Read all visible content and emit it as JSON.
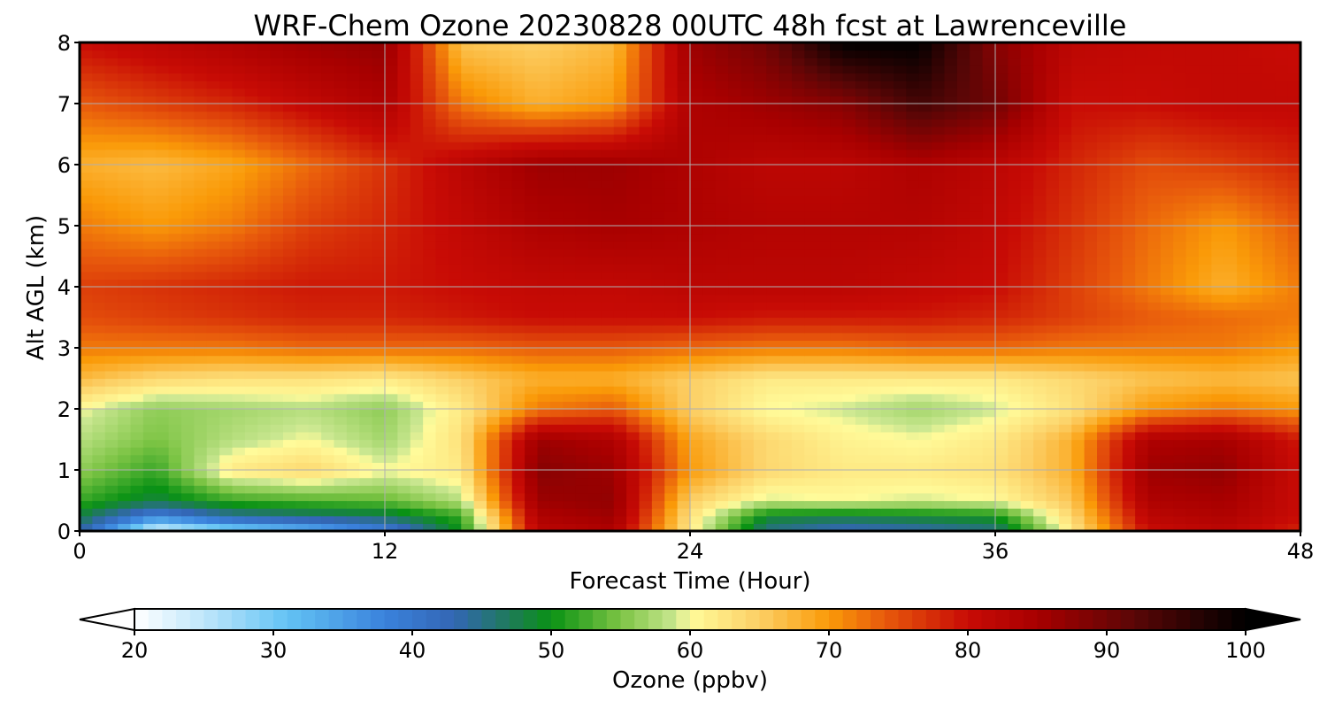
{
  "chart_data": {
    "type": "heatmap",
    "title": "WRF-Chem Ozone  20230828 00UTC 48h fcst at Lawrenceville",
    "xlabel": "Forecast Time (Hour)",
    "ylabel": "Alt AGL (km)",
    "xlim": [
      0,
      48
    ],
    "ylim": [
      0,
      8
    ],
    "x_ticks": [
      0,
      12,
      24,
      36,
      48
    ],
    "y_ticks": [
      0,
      1,
      2,
      3,
      4,
      5,
      6,
      7,
      8
    ],
    "grid": true,
    "x": [
      0,
      3,
      6,
      9,
      12,
      15,
      18,
      21,
      24,
      27,
      30,
      33,
      36,
      39,
      42,
      45,
      48
    ],
    "y": [
      0,
      0.25,
      0.5,
      1,
      1.5,
      2,
      2.5,
      3,
      3.5,
      4,
      5,
      6,
      7,
      8
    ],
    "values": [
      [
        44,
        22,
        28,
        32,
        38,
        50,
        82,
        84,
        62,
        45,
        42,
        43,
        45,
        62,
        80,
        82,
        78
      ],
      [
        48,
        38,
        44,
        46,
        47,
        52,
        84,
        86,
        63,
        49,
        48,
        49,
        50,
        64,
        82,
        84,
        80
      ],
      [
        52,
        48,
        52,
        53,
        54,
        58,
        86,
        87,
        65,
        59,
        60,
        59,
        60,
        66,
        84,
        85,
        80
      ],
      [
        56,
        52,
        62,
        64,
        60,
        62,
        88,
        86,
        70,
        64,
        62,
        62,
        63,
        68,
        86,
        87,
        80
      ],
      [
        58,
        55,
        58,
        60,
        57,
        63,
        86,
        84,
        69,
        64,
        61,
        60,
        62,
        68,
        84,
        85,
        79
      ],
      [
        60,
        56,
        57,
        58,
        56,
        62,
        72,
        74,
        65,
        60,
        59,
        57,
        59,
        63,
        70,
        72,
        70
      ],
      [
        67,
        64,
        63,
        63,
        62,
        65,
        68,
        68,
        65,
        62,
        62,
        62,
        62,
        64,
        66,
        67,
        66
      ],
      [
        72,
        72,
        72,
        73,
        73,
        73,
        74,
        74,
        73,
        72,
        72,
        73,
        73,
        72,
        72,
        72,
        70
      ],
      [
        75,
        76,
        77,
        78,
        78,
        79,
        80,
        80,
        80,
        79,
        79,
        79,
        78,
        76,
        74,
        73,
        72
      ],
      [
        76,
        77,
        78,
        79,
        79,
        80,
        81,
        81,
        82,
        82,
        82,
        81,
        80,
        76,
        72,
        68,
        72
      ],
      [
        72,
        70,
        72,
        76,
        78,
        81,
        84,
        85,
        84,
        83,
        83,
        83,
        81,
        77,
        73,
        70,
        74
      ],
      [
        68,
        67,
        69,
        73,
        77,
        82,
        86,
        86,
        84,
        82,
        82,
        84,
        82,
        78,
        75,
        76,
        78
      ],
      [
        74,
        76,
        78,
        81,
        84,
        72,
        68,
        70,
        84,
        86,
        88,
        94,
        90,
        80,
        80,
        81,
        81
      ],
      [
        80,
        82,
        84,
        86,
        87,
        66,
        65,
        67,
        86,
        90,
        100,
        100,
        88,
        82,
        81,
        81,
        80
      ]
    ],
    "colorbar": {
      "label": "Ozone  (ppbv)",
      "min": 20,
      "max": 100,
      "ticks": [
        20,
        30,
        40,
        50,
        60,
        70,
        80,
        90,
        100
      ],
      "extend": "both",
      "stops": [
        {
          "v": 20,
          "c": "#ffffff"
        },
        {
          "v": 25,
          "c": "#bfe6fb"
        },
        {
          "v": 31,
          "c": "#63c3f4"
        },
        {
          "v": 38,
          "c": "#3a82dc"
        },
        {
          "v": 43,
          "c": "#3366b4"
        },
        {
          "v": 47,
          "c": "#1e7a5a"
        },
        {
          "v": 50,
          "c": "#0a9214"
        },
        {
          "v": 55,
          "c": "#7cc444"
        },
        {
          "v": 59,
          "c": "#cae791"
        },
        {
          "v": 60,
          "c": "#fffb9a"
        },
        {
          "v": 65,
          "c": "#fccf65"
        },
        {
          "v": 70,
          "c": "#fa9a08"
        },
        {
          "v": 74,
          "c": "#e85a0c"
        },
        {
          "v": 80,
          "c": "#c80b05"
        },
        {
          "v": 85,
          "c": "#a80000"
        },
        {
          "v": 92,
          "c": "#5a0606"
        },
        {
          "v": 100,
          "c": "#000000"
        }
      ]
    }
  }
}
